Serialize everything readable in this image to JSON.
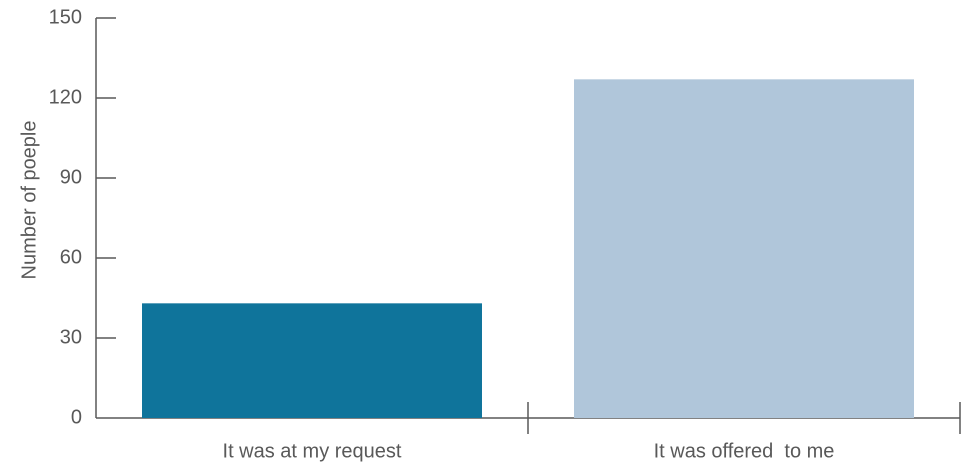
{
  "chart_data": {
    "type": "bar",
    "title": "",
    "xlabel": "",
    "ylabel": "Number of poeple",
    "categories": [
      "It was at my request",
      "It was offered  to me"
    ],
    "values": [
      43,
      127
    ],
    "colors": [
      "#0f749b",
      "#b0c6da"
    ],
    "ylim": [
      0,
      150
    ],
    "yticks": [
      0,
      30,
      60,
      90,
      120,
      150
    ],
    "grid": false,
    "legend": "none"
  }
}
